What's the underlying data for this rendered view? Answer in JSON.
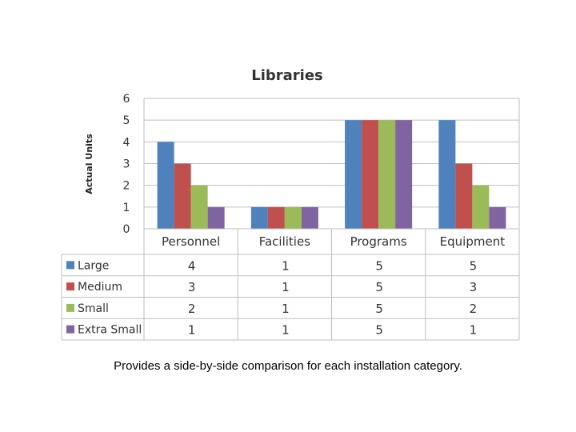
{
  "chart_data": {
    "type": "bar",
    "title": "Libraries",
    "ylabel": "Actual Units",
    "xlabel": "",
    "ylim": [
      0,
      6
    ],
    "yticks": [
      0,
      1,
      2,
      3,
      4,
      5,
      6
    ],
    "grid": true,
    "legend": "data-table",
    "categories": [
      "Personnel",
      "Facilities",
      "Programs",
      "Equipment"
    ],
    "series": [
      {
        "name": "Large",
        "color": "#4F81BD",
        "values": [
          4,
          1,
          5,
          5
        ]
      },
      {
        "name": "Medium",
        "color": "#C0504D",
        "values": [
          3,
          1,
          5,
          3
        ]
      },
      {
        "name": "Small",
        "color": "#9BBB59",
        "values": [
          2,
          1,
          5,
          2
        ]
      },
      {
        "name": "Extra Small",
        "color": "#8064A2",
        "values": [
          1,
          1,
          5,
          1
        ]
      }
    ]
  },
  "caption": "Provides a side-by-side comparison for each installation category."
}
